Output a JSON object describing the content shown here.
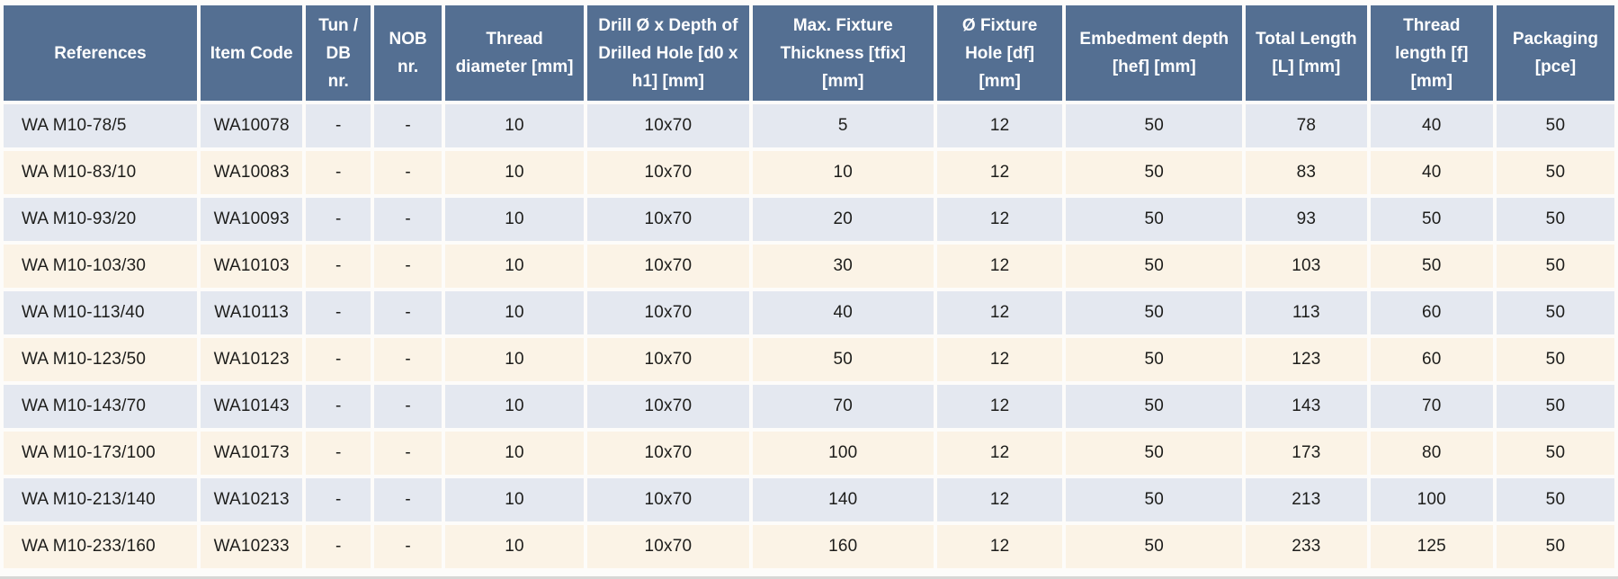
{
  "colors": {
    "header_bg": "#546f92",
    "header_text": "#ffffff",
    "row_even_bg": "#e4e8f0",
    "row_odd_bg": "#fbf3e6",
    "cell_text": "#1d1d1b",
    "gap": "#ffffff"
  },
  "table": {
    "columns": [
      "References",
      "Item Code",
      "Tun / DB nr.",
      "NOB nr.",
      "Thread diameter [mm]",
      "Drill Ø x Depth of Drilled Hole [d0 x h1] [mm]",
      "Max. Fixture Thickness [tfix] [mm]",
      "Ø Fixture Hole [df] [mm]",
      "Embedment depth [hef] [mm]",
      "Total Length [L] [mm]",
      "Thread length [f] [mm]",
      "Packaging [pce]"
    ],
    "col_widths_pct": [
      12.3,
      6.5,
      4.1,
      4.3,
      8.8,
      10.3,
      11.5,
      8.0,
      11.2,
      7.7,
      7.8,
      7.5
    ],
    "rows": [
      [
        "WA M10-78/5",
        "WA10078",
        "-",
        "-",
        "10",
        "10x70",
        "5",
        "12",
        "50",
        "78",
        "40",
        "50"
      ],
      [
        "WA M10-83/10",
        "WA10083",
        "-",
        "-",
        "10",
        "10x70",
        "10",
        "12",
        "50",
        "83",
        "40",
        "50"
      ],
      [
        "WA M10-93/20",
        "WA10093",
        "-",
        "-",
        "10",
        "10x70",
        "20",
        "12",
        "50",
        "93",
        "50",
        "50"
      ],
      [
        "WA M10-103/30",
        "WA10103",
        "-",
        "-",
        "10",
        "10x70",
        "30",
        "12",
        "50",
        "103",
        "50",
        "50"
      ],
      [
        "WA M10-113/40",
        "WA10113",
        "-",
        "-",
        "10",
        "10x70",
        "40",
        "12",
        "50",
        "113",
        "60",
        "50"
      ],
      [
        "WA M10-123/50",
        "WA10123",
        "-",
        "-",
        "10",
        "10x70",
        "50",
        "12",
        "50",
        "123",
        "60",
        "50"
      ],
      [
        "WA M10-143/70",
        "WA10143",
        "-",
        "-",
        "10",
        "10x70",
        "70",
        "12",
        "50",
        "143",
        "70",
        "50"
      ],
      [
        "WA M10-173/100",
        "WA10173",
        "-",
        "-",
        "10",
        "10x70",
        "100",
        "12",
        "50",
        "173",
        "80",
        "50"
      ],
      [
        "WA M10-213/140",
        "WA10213",
        "-",
        "-",
        "10",
        "10x70",
        "140",
        "12",
        "50",
        "213",
        "100",
        "50"
      ],
      [
        "WA M10-233/160",
        "WA10233",
        "-",
        "-",
        "10",
        "10x70",
        "160",
        "12",
        "50",
        "233",
        "125",
        "50"
      ]
    ]
  }
}
